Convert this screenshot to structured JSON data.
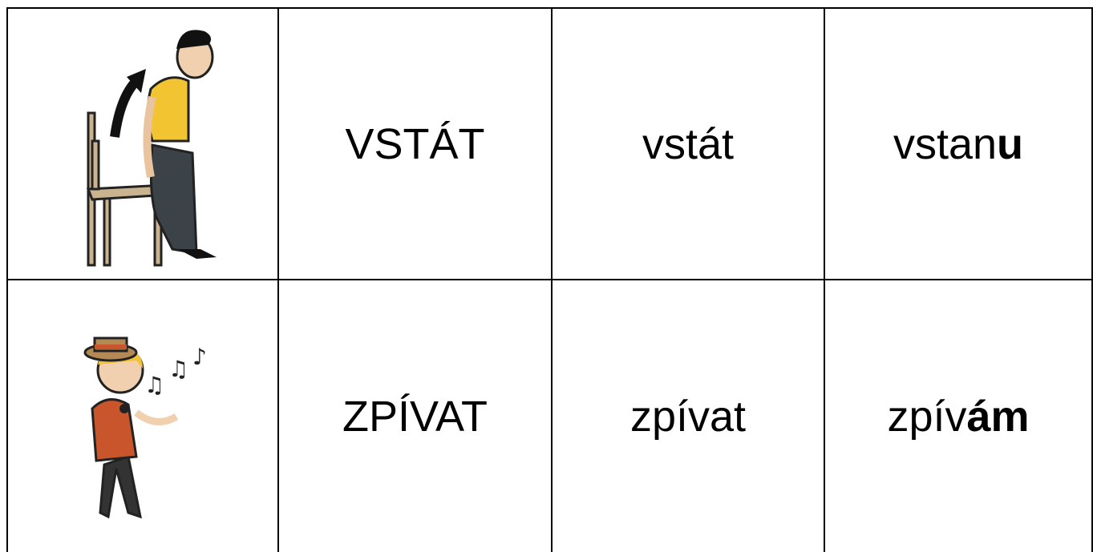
{
  "table": {
    "rows": [
      {
        "caps": "VSTÁT",
        "word": "vstát",
        "stem": "vstan",
        "ending": "u"
      },
      {
        "caps": "ZPÍVAT",
        "word": "zpívat",
        "stem": "zpív",
        "ending": "ám"
      }
    ]
  }
}
